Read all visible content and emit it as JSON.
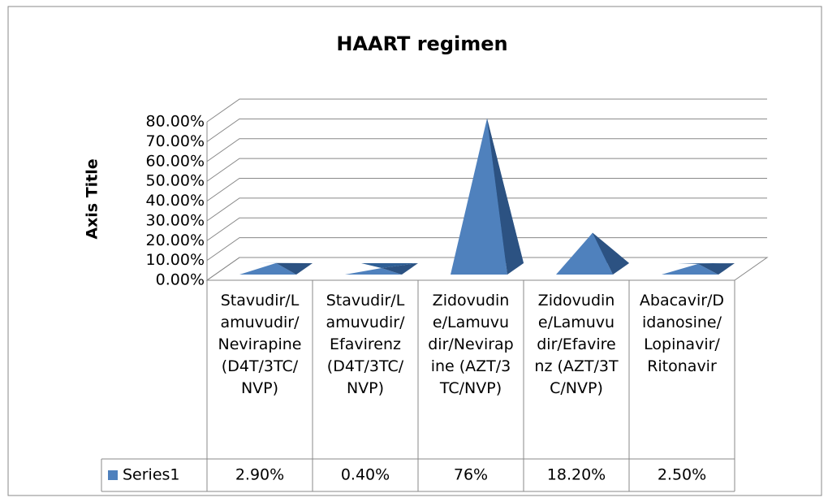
{
  "chart_data": {
    "type": "pyramid",
    "title": "HAART regimen",
    "y_axis_label": "Axis Title",
    "categories": [
      "Stavudir/Lamuvudir/Nevirapine (D4T/3TC/NVP)",
      "Stavudir/Lamuvudir/Efavirenz (D4T/3TC/NVP)",
      "Zidovudine/Lamuvudir/Nevirapine (AZT/3TC/NVP)",
      "Zidovudine/Lamuvudir/Efavirenz (AZT/3TC/NVP)",
      "Abacavir/Didanosine/Lopinavir/Ritonavir"
    ],
    "series": [
      {
        "name": "Series1",
        "color": "#4f81bd",
        "values": [
          2.9,
          0.4,
          76,
          18.2,
          2.5
        ],
        "value_labels": [
          "2.90%",
          "0.40%",
          "76%",
          "18.20%",
          "2.50%"
        ]
      }
    ],
    "ylim": [
      0,
      80
    ],
    "yticks": [
      {
        "value": 0,
        "label": "0.00%"
      },
      {
        "value": 10,
        "label": "10.00%"
      },
      {
        "value": 20,
        "label": "20.00%"
      },
      {
        "value": 30,
        "label": "30.00%"
      },
      {
        "value": 40,
        "label": "40.00%"
      },
      {
        "value": 50,
        "label": "50.00%"
      },
      {
        "value": 60,
        "label": "60.00%"
      },
      {
        "value": 70,
        "label": "70.00%"
      },
      {
        "value": 80,
        "label": "80.00%"
      }
    ],
    "grid": true,
    "data_table": true
  }
}
